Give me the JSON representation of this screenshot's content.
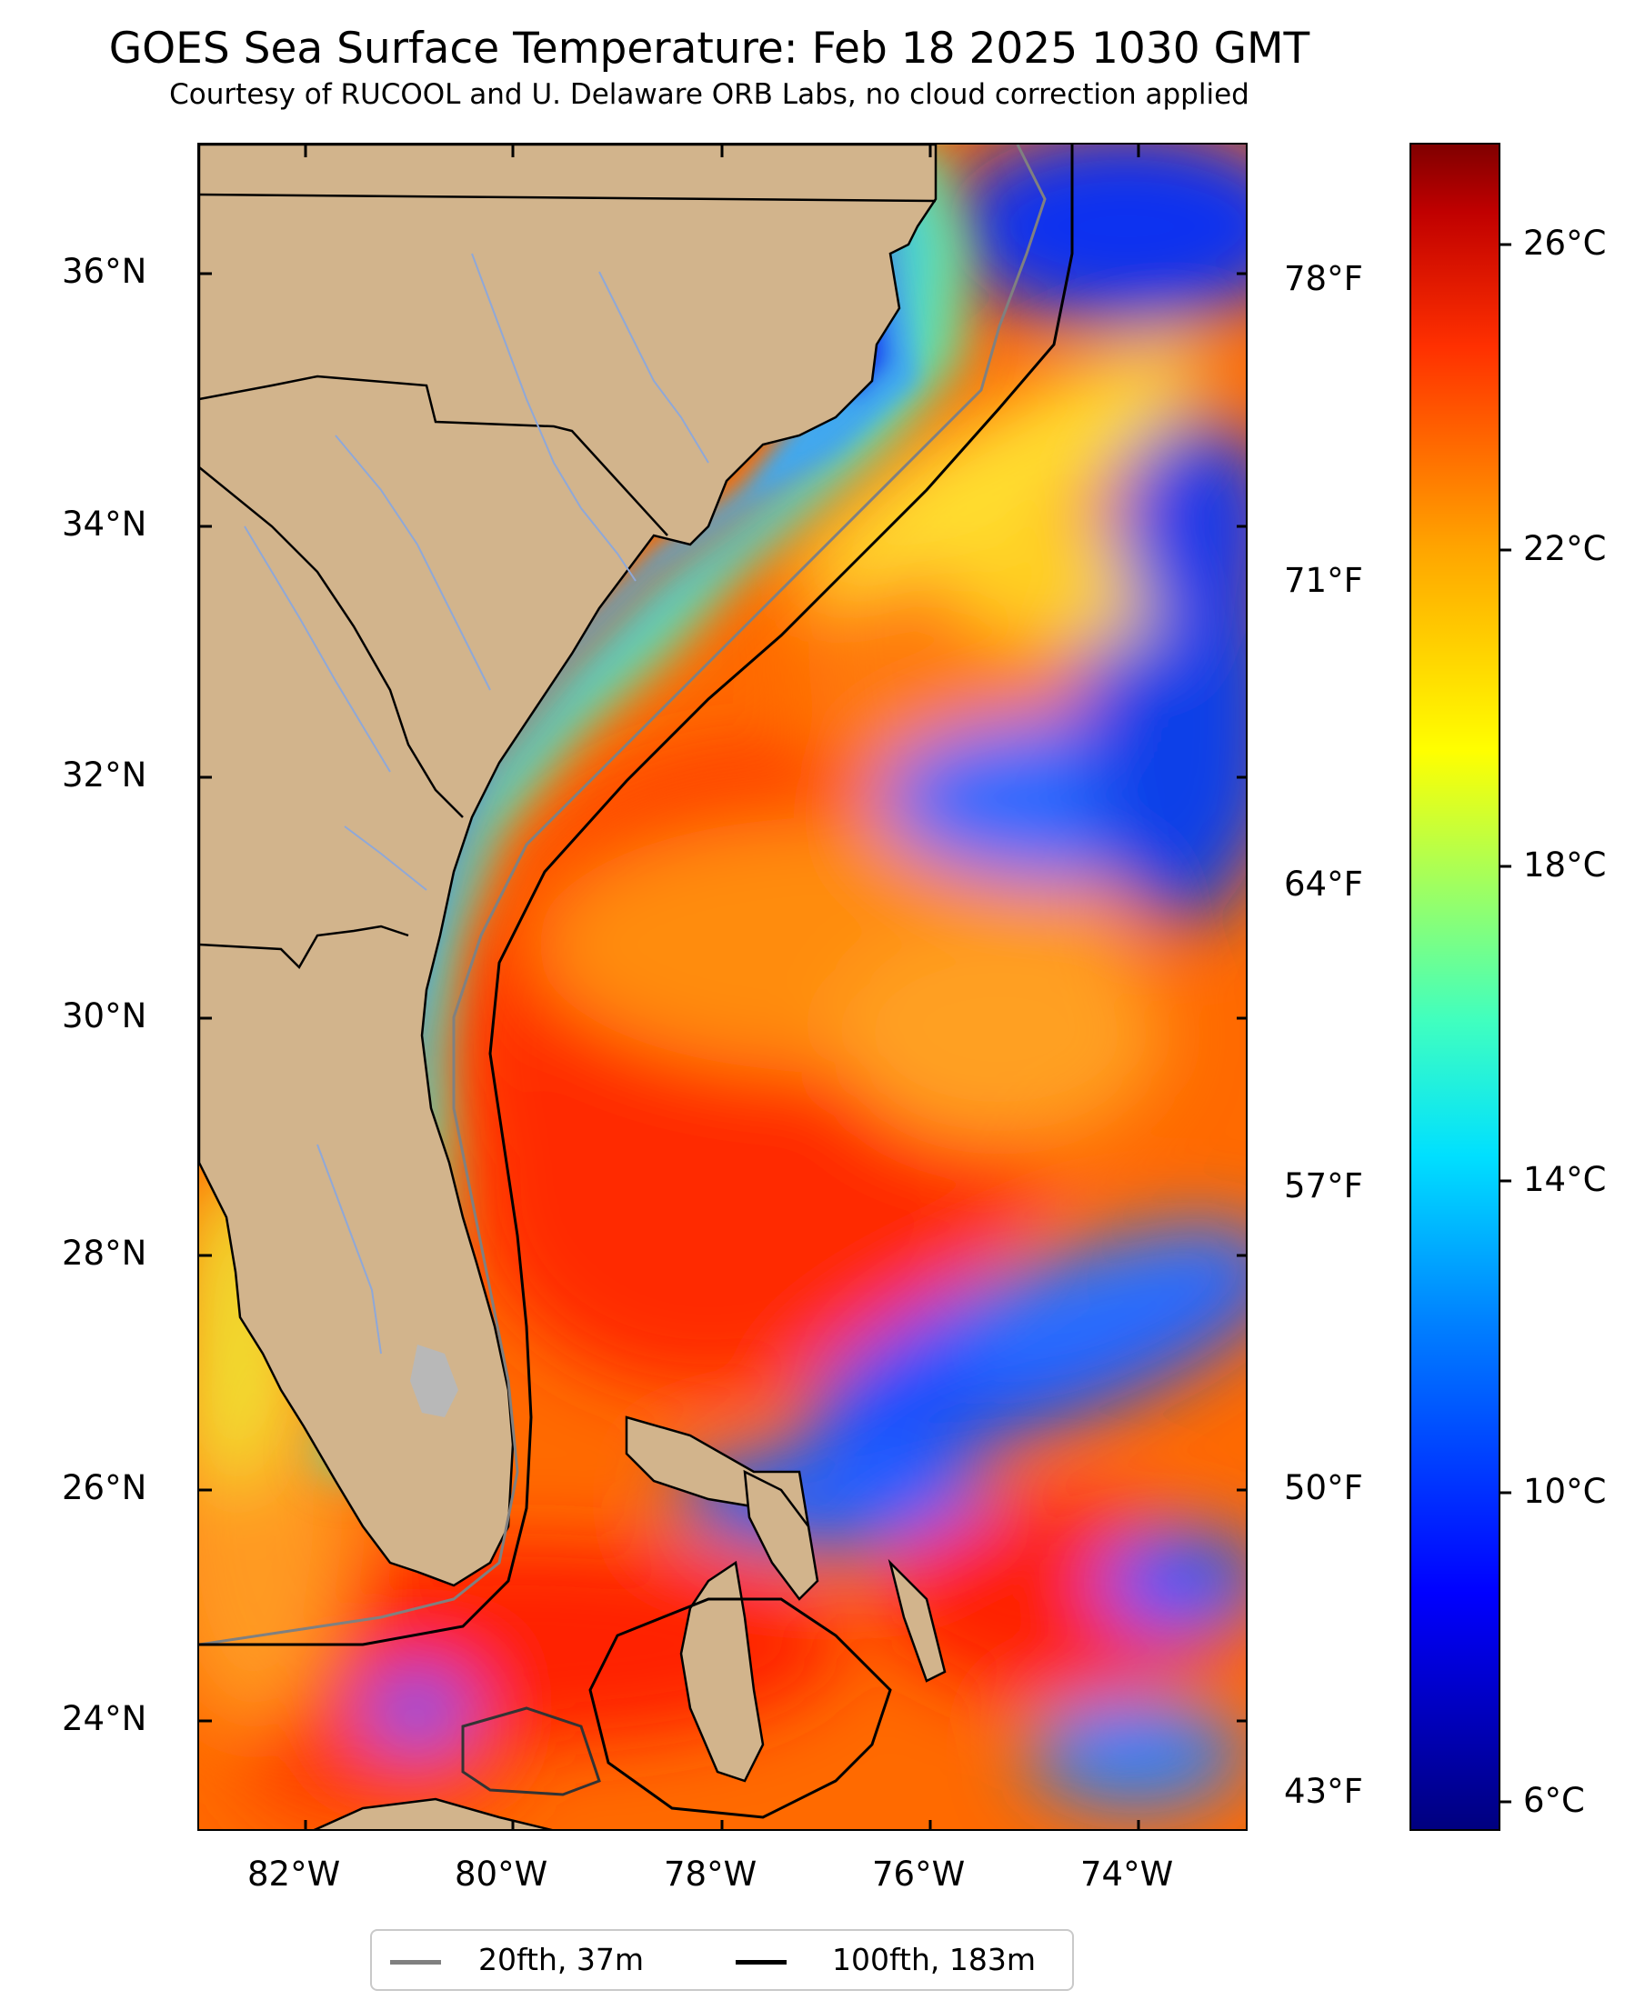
{
  "title": "GOES Sea Surface Temperature: Feb 18 2025 1030 GMT",
  "subtitle": "Courtesy of RUCOOL and U. Delaware ORB Labs, no cloud correction applied",
  "latitude_labels": [
    "36°N",
    "34°N",
    "32°N",
    "30°N",
    "28°N",
    "26°N",
    "24°N"
  ],
  "longitude_labels": [
    "82°W",
    "80°W",
    "78°W",
    "76°W",
    "74°W"
  ],
  "fahrenheit_labels": [
    "78°F",
    "71°F",
    "64°F",
    "57°F",
    "50°F",
    "43°F"
  ],
  "celsius_labels": [
    "26°C",
    "22°C",
    "18°C",
    "14°C",
    "10°C",
    "6°C"
  ],
  "legend": {
    "items": [
      {
        "label": "20fth, 37m",
        "color": "#808080"
      },
      {
        "label": "100fth, 183m",
        "color": "#000000"
      }
    ]
  },
  "colors": {
    "land": "#d2b48c",
    "rivers": "#8fa8d8",
    "lake": "#b8b8b8",
    "isobath_20fth": "#808080",
    "isobath_100fth": "#000000"
  }
}
